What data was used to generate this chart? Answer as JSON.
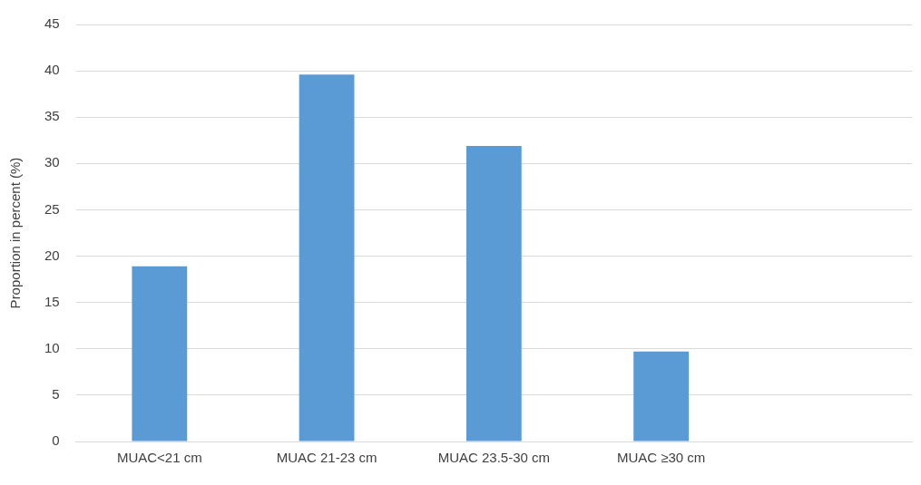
{
  "chart_data": {
    "type": "bar",
    "ylabel": "Proportion in percent (%)",
    "categories": [
      "MUAC<21 cm",
      "MUAC 21-23 cm",
      "MUAC 23.5-30 cm",
      "MUAC ≥30 cm",
      null
    ],
    "values": [
      18.9,
      39.6,
      31.9,
      9.7,
      null
    ],
    "color": "#5b9bd5",
    "ylim": [
      0,
      45
    ],
    "yticks": [
      0,
      5,
      10,
      15,
      20,
      25,
      30,
      35,
      40,
      45
    ],
    "grid": "y"
  }
}
